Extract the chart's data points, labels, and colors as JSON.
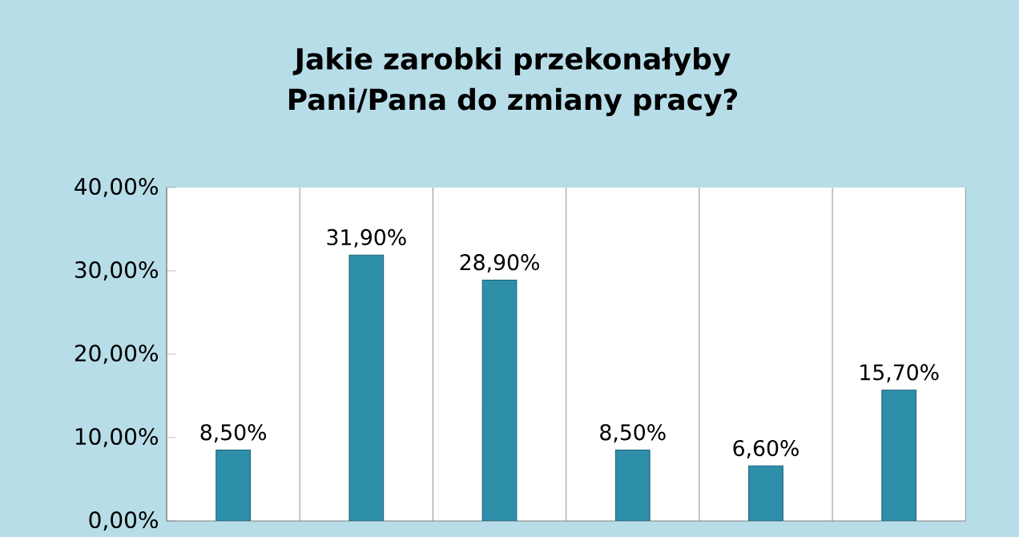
{
  "chart_data": {
    "type": "bar",
    "title": "Jakie zarobki przekonałyby Pani/Pana do zmiany pracy?",
    "categories": [
      null,
      null,
      null,
      null,
      null,
      null
    ],
    "values": [
      8.5,
      31.9,
      28.9,
      8.5,
      6.6,
      15.7
    ],
    "value_labels": [
      "8,50%",
      "31,90%",
      "28,90%",
      "8,50%",
      "6,60%",
      "15,70%"
    ],
    "color": "#2e8fab",
    "ylim": [
      0,
      40
    ],
    "yticks": [
      {
        "value": 0,
        "label": "0,00%"
      },
      {
        "value": 10,
        "label": "10,00%"
      },
      {
        "value": 20,
        "label": "20,00%"
      },
      {
        "value": 30,
        "label": "30,00%"
      },
      {
        "value": 40,
        "label": "40,00%"
      }
    ],
    "grid": "x"
  }
}
